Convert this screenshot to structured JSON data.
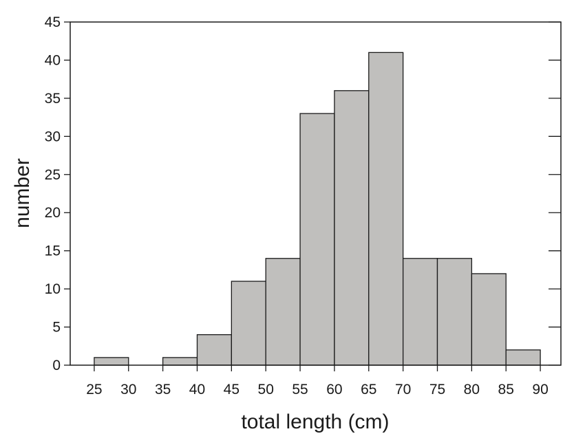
{
  "chart_data": {
    "type": "bar",
    "title": "",
    "xlabel": "total length (cm)",
    "ylabel": "number",
    "bin_edges": [
      25,
      30,
      35,
      40,
      45,
      50,
      55,
      60,
      65,
      70,
      75,
      80,
      85,
      90
    ],
    "values": [
      1,
      0,
      1,
      4,
      11,
      14,
      33,
      36,
      41,
      14,
      14,
      12,
      2
    ],
    "x_ticks": [
      25,
      30,
      35,
      40,
      45,
      50,
      55,
      60,
      65,
      70,
      75,
      80,
      85,
      90
    ],
    "y_ticks": [
      0,
      5,
      10,
      15,
      20,
      25,
      30,
      35,
      40,
      45
    ],
    "xlim": [
      21.5,
      93
    ],
    "ylim": [
      0,
      45
    ],
    "grid": false,
    "bar_color": "#c0bfbd",
    "edge_color": "#1a1a1a"
  }
}
